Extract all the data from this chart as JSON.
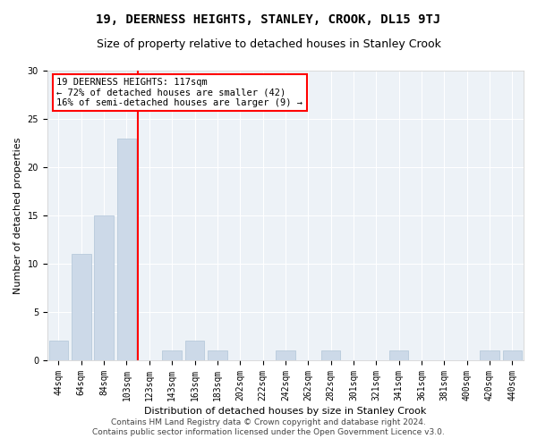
{
  "title": "19, DEERNESS HEIGHTS, STANLEY, CROOK, DL15 9TJ",
  "subtitle": "Size of property relative to detached houses in Stanley Crook",
  "xlabel": "Distribution of detached houses by size in Stanley Crook",
  "ylabel": "Number of detached properties",
  "bar_color": "#ccd9e8",
  "bar_edge_color": "#b0c4d8",
  "background_color": "#edf2f7",
  "grid_color": "#ffffff",
  "categories": [
    "44sqm",
    "64sqm",
    "84sqm",
    "103sqm",
    "123sqm",
    "143sqm",
    "163sqm",
    "183sqm",
    "202sqm",
    "222sqm",
    "242sqm",
    "262sqm",
    "282sqm",
    "301sqm",
    "321sqm",
    "341sqm",
    "361sqm",
    "381sqm",
    "400sqm",
    "420sqm",
    "440sqm"
  ],
  "values": [
    2,
    11,
    15,
    23,
    0,
    1,
    2,
    1,
    0,
    0,
    1,
    0,
    1,
    0,
    0,
    1,
    0,
    0,
    0,
    1,
    1
  ],
  "ylim": [
    0,
    30
  ],
  "yticks": [
    0,
    5,
    10,
    15,
    20,
    25,
    30
  ],
  "red_line_x": 3.5,
  "annotation_line1": "19 DEERNESS HEIGHTS: 117sqm",
  "annotation_line2": "← 72% of detached houses are smaller (42)",
  "annotation_line3": "16% of semi-detached houses are larger (9) →",
  "footer_line1": "Contains HM Land Registry data © Crown copyright and database right 2024.",
  "footer_line2": "Contains public sector information licensed under the Open Government Licence v3.0.",
  "title_fontsize": 10,
  "subtitle_fontsize": 9,
  "axis_label_fontsize": 8,
  "tick_fontsize": 7,
  "annotation_fontsize": 7.5,
  "footer_fontsize": 6.5
}
